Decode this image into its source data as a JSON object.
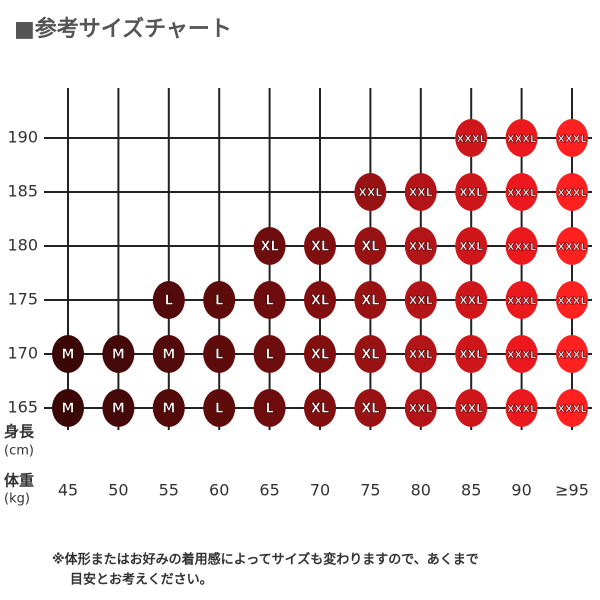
{
  "title": "■参考サイズチャート",
  "y_label": "身長",
  "y_unit": "(cm)",
  "x_label": "体重",
  "x_unit": "(kg)",
  "weights": [
    45,
    50,
    55,
    60,
    65,
    70,
    75,
    80,
    85,
    90,
    {
      "value": 95,
      "label": "≥95"
    }
  ],
  "column_colors": [
    "#3b0706",
    "#450809",
    "#520a0a",
    "#5e0b0b",
    "#6e0d0d",
    "#820f10",
    "#981214",
    "#b31418",
    "#cf161b",
    "#eb191e",
    "#ff2020"
  ],
  "rows": [
    {
      "height": 190,
      "cells": [
        null,
        null,
        null,
        null,
        null,
        null,
        null,
        null,
        "XXXL",
        "XXXL",
        "XXXL"
      ]
    },
    {
      "height": 185,
      "cells": [
        null,
        null,
        null,
        null,
        null,
        null,
        "XXL",
        "XXL",
        "XXL",
        "XXXL",
        "XXXL"
      ]
    },
    {
      "height": 180,
      "cells": [
        null,
        null,
        null,
        null,
        "XL",
        "XL",
        "XL",
        "XXL",
        "XXL",
        "XXXL",
        "XXXL"
      ]
    },
    {
      "height": 175,
      "cells": [
        null,
        null,
        "L",
        "L",
        "L",
        "XL",
        "XL",
        "XXL",
        "XXL",
        "XXXL",
        "XXXL"
      ]
    },
    {
      "height": 170,
      "cells": [
        "M",
        "M",
        "M",
        "L",
        "L",
        "XL",
        "XL",
        "XXL",
        "XXL",
        "XXXL",
        "XXXL"
      ]
    },
    {
      "height": 165,
      "cells": [
        "M",
        "M",
        "M",
        "L",
        "L",
        "XL",
        "XL",
        "XXL",
        "XXL",
        "XXXL",
        "XXXL"
      ]
    }
  ],
  "note": [
    "※体形またはお好みの着用感によってサイズも変わりますので、あくまで",
    "目安とお考えください。"
  ]
}
